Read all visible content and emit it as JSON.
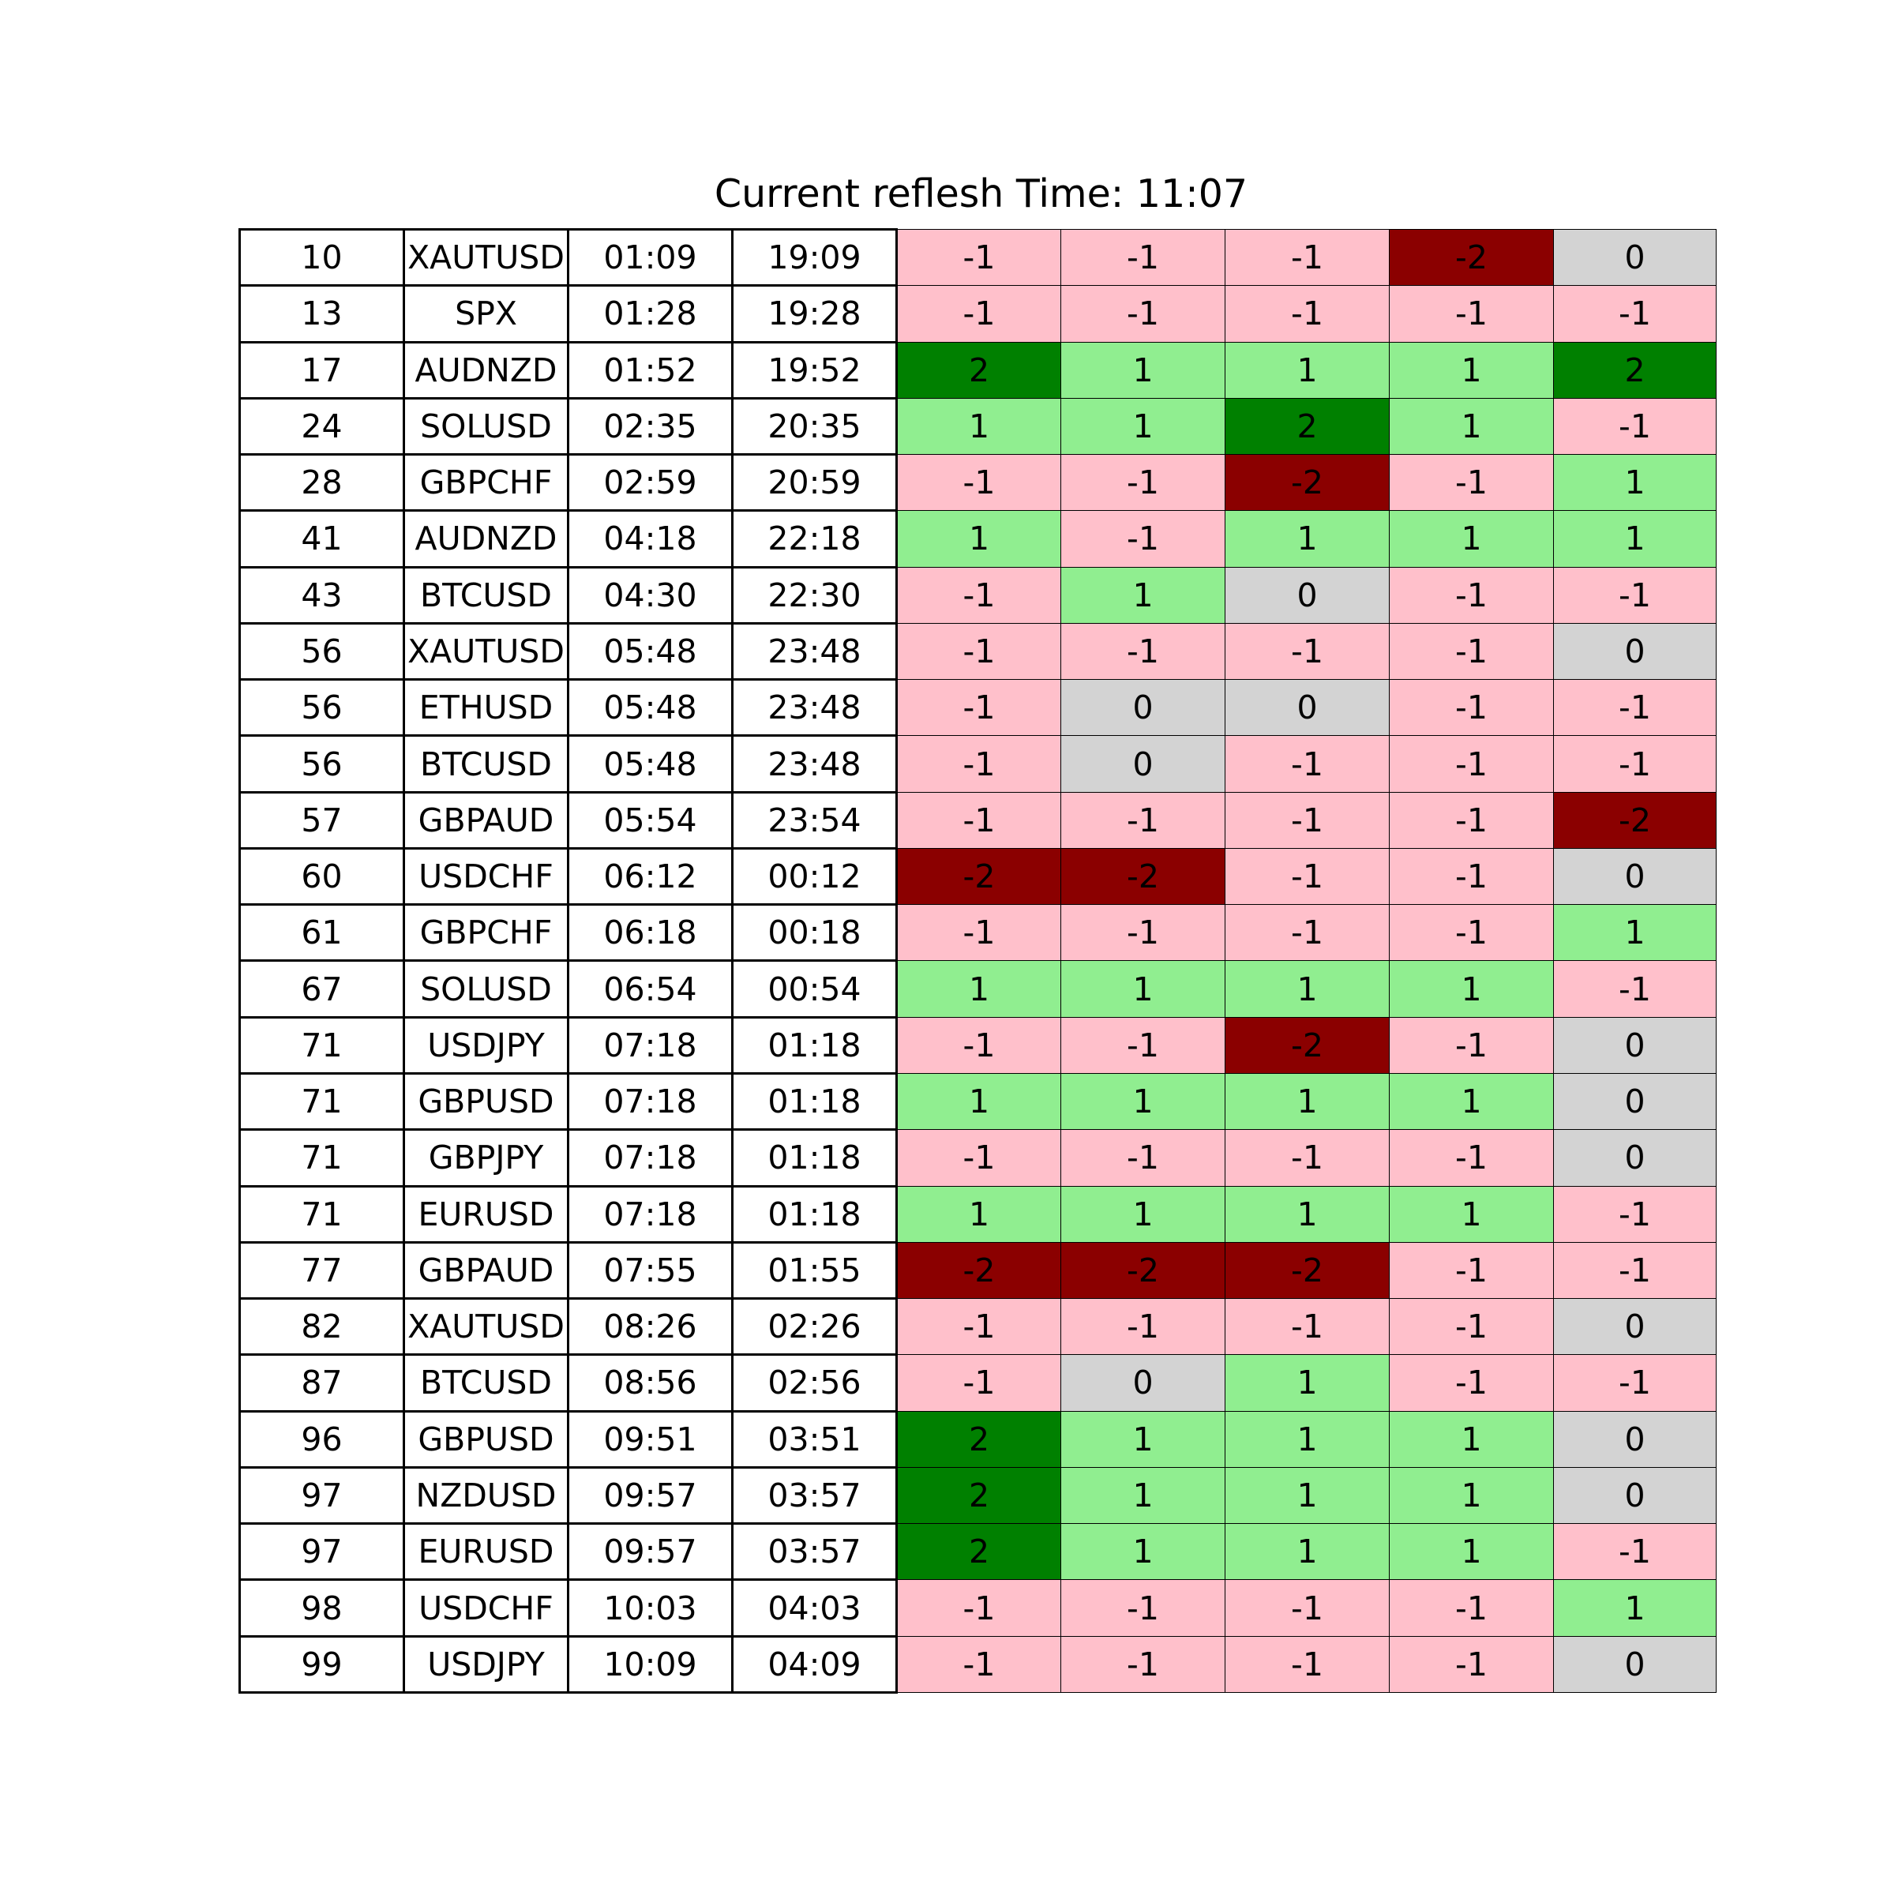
{
  "title": "Current reflesh Time: 11:07",
  "colors": {
    "-2": "#8b0000",
    "-1": "#ffc0cb",
    "0": "#d3d3d3",
    "1": "#90ee90",
    "2": "#008000"
  },
  "chart_data": {
    "type": "table",
    "title": "Current reflesh Time: 11:07",
    "rows": [
      [
        "10",
        "XAUTUSD",
        "01:09",
        "19:09",
        "-1",
        "-1",
        "-1",
        "-2",
        "0"
      ],
      [
        "13",
        "SPX",
        "01:28",
        "19:28",
        "-1",
        "-1",
        "-1",
        "-1",
        "-1"
      ],
      [
        "17",
        "AUDNZD",
        "01:52",
        "19:52",
        "2",
        "1",
        "1",
        "1",
        "2"
      ],
      [
        "24",
        "SOLUSD",
        "02:35",
        "20:35",
        "1",
        "1",
        "2",
        "1",
        "-1"
      ],
      [
        "28",
        "GBPCHF",
        "02:59",
        "20:59",
        "-1",
        "-1",
        "-2",
        "-1",
        "1"
      ],
      [
        "41",
        "AUDNZD",
        "04:18",
        "22:18",
        "1",
        "-1",
        "1",
        "1",
        "1"
      ],
      [
        "43",
        "BTCUSD",
        "04:30",
        "22:30",
        "-1",
        "1",
        "0",
        "-1",
        "-1"
      ],
      [
        "56",
        "XAUTUSD",
        "05:48",
        "23:48",
        "-1",
        "-1",
        "-1",
        "-1",
        "0"
      ],
      [
        "56",
        "ETHUSD",
        "05:48",
        "23:48",
        "-1",
        "0",
        "0",
        "-1",
        "-1"
      ],
      [
        "56",
        "BTCUSD",
        "05:48",
        "23:48",
        "-1",
        "0",
        "-1",
        "-1",
        "-1"
      ],
      [
        "57",
        "GBPAUD",
        "05:54",
        "23:54",
        "-1",
        "-1",
        "-1",
        "-1",
        "-2"
      ],
      [
        "60",
        "USDCHF",
        "06:12",
        "00:12",
        "-2",
        "-2",
        "-1",
        "-1",
        "0"
      ],
      [
        "61",
        "GBPCHF",
        "06:18",
        "00:18",
        "-1",
        "-1",
        "-1",
        "-1",
        "1"
      ],
      [
        "67",
        "SOLUSD",
        "06:54",
        "00:54",
        "1",
        "1",
        "1",
        "1",
        "-1"
      ],
      [
        "71",
        "USDJPY",
        "07:18",
        "01:18",
        "-1",
        "-1",
        "-2",
        "-1",
        "0"
      ],
      [
        "71",
        "GBPUSD",
        "07:18",
        "01:18",
        "1",
        "1",
        "1",
        "1",
        "0"
      ],
      [
        "71",
        "GBPJPY",
        "07:18",
        "01:18",
        "-1",
        "-1",
        "-1",
        "-1",
        "0"
      ],
      [
        "71",
        "EURUSD",
        "07:18",
        "01:18",
        "1",
        "1",
        "1",
        "1",
        "-1"
      ],
      [
        "77",
        "GBPAUD",
        "07:55",
        "01:55",
        "-2",
        "-2",
        "-2",
        "-1",
        "-1"
      ],
      [
        "82",
        "XAUTUSD",
        "08:26",
        "02:26",
        "-1",
        "-1",
        "-1",
        "-1",
        "0"
      ],
      [
        "87",
        "BTCUSD",
        "08:56",
        "02:56",
        "-1",
        "0",
        "1",
        "-1",
        "-1"
      ],
      [
        "96",
        "GBPUSD",
        "09:51",
        "03:51",
        "2",
        "1",
        "1",
        "1",
        "0"
      ],
      [
        "97",
        "NZDUSD",
        "09:57",
        "03:57",
        "2",
        "1",
        "1",
        "1",
        "0"
      ],
      [
        "97",
        "EURUSD",
        "09:57",
        "03:57",
        "2",
        "1",
        "1",
        "1",
        "-1"
      ],
      [
        "98",
        "USDCHF",
        "10:03",
        "04:03",
        "-1",
        "-1",
        "-1",
        "-1",
        "1"
      ],
      [
        "99",
        "USDJPY",
        "10:09",
        "04:09",
        "-1",
        "-1",
        "-1",
        "-1",
        "0"
      ]
    ]
  }
}
